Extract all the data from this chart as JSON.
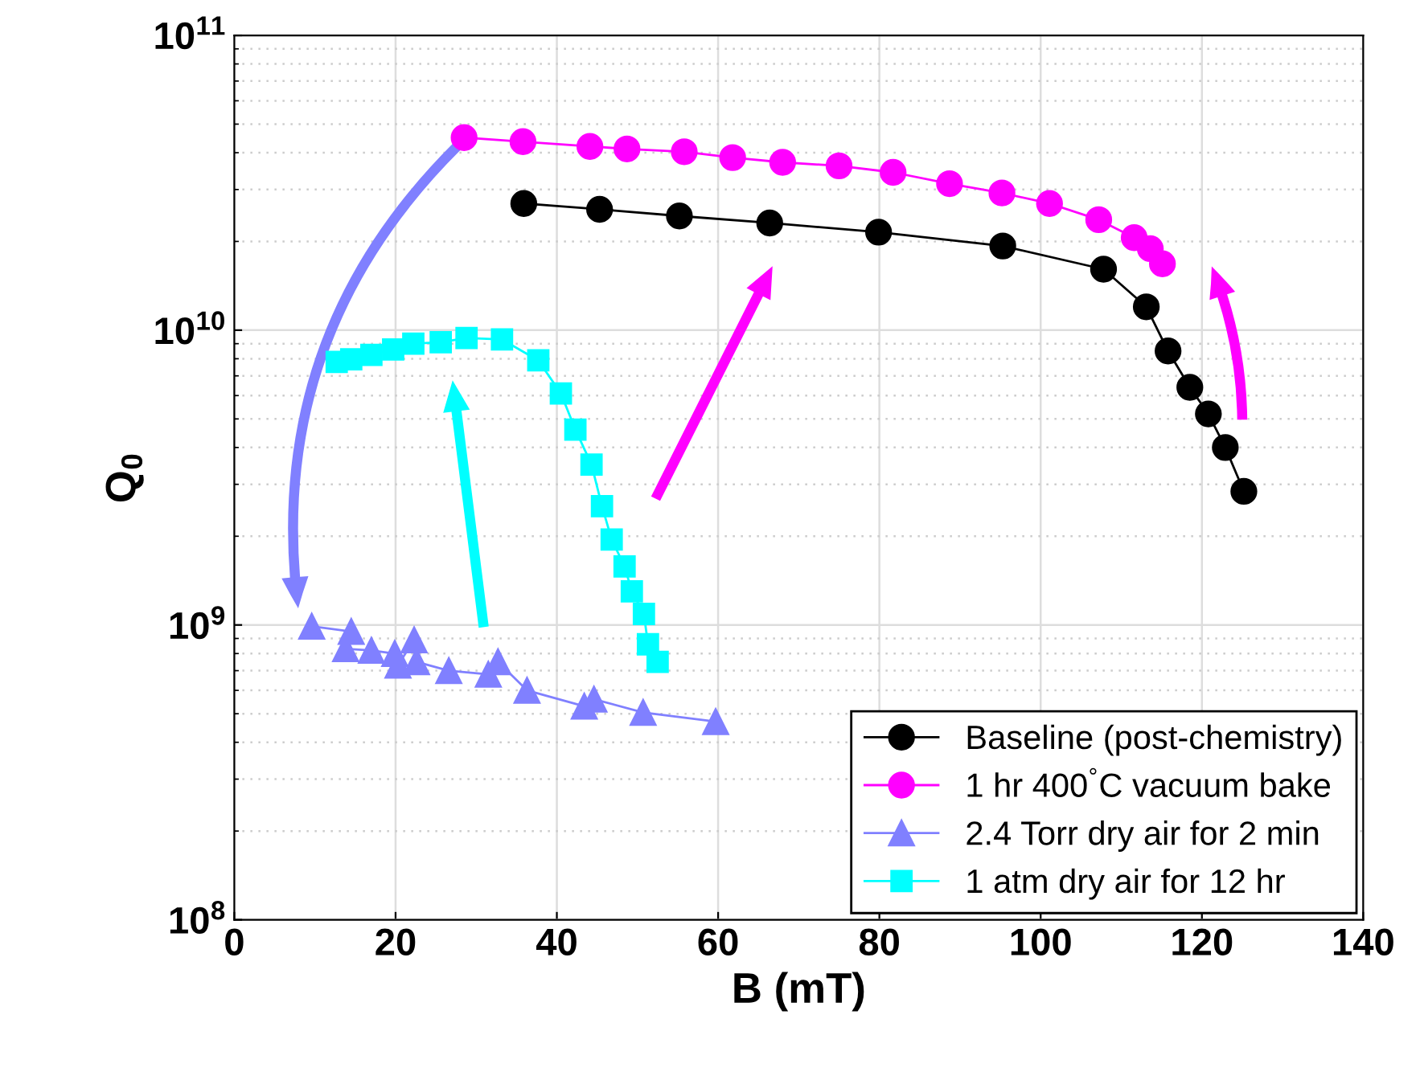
{
  "chart_data": {
    "type": "line",
    "xlabel": "B (mT)",
    "ylabel": "Q$_{0}$",
    "log": "y",
    "grid": true,
    "legend": "bottom right",
    "xlim": [
      0,
      140
    ],
    "xticks": [
      0,
      20,
      40,
      60,
      80,
      100,
      120,
      140
    ],
    "ylim": [
      100000000.0,
      100000000000.0
    ],
    "yticks": [
      {
        "value": 100000000.0,
        "label": "10$^{8}$"
      },
      {
        "value": 1000000000.0,
        "label": "10$^{9}$"
      },
      {
        "value": 10000000000.0,
        "label": "10$^{10}$"
      },
      {
        "value": 100000000000.0,
        "label": "10$^{11}$"
      }
    ],
    "series": [
      {
        "name": "Baseline (post-chemistry)",
        "color": "#000000",
        "marker": "circle",
        "x": [
          35.9,
          45.3,
          55.2,
          66.4,
          79.9,
          95.3,
          107.8,
          113.1,
          115.8,
          118.5,
          120.8,
          122.9,
          125.2
        ],
        "values": [
          26900000000.0,
          25700000000.0,
          24400000000.0,
          23100000000.0,
          21500000000.0,
          19300000000.0,
          16100000000.0,
          12000000000.0,
          8500000000.0,
          6400000000.0,
          5200000000.0,
          4000000000.0,
          2840000000.0
        ]
      },
      {
        "name": "1 hr 400$^{°}$C vacuum bake",
        "color": "#ff00ff",
        "marker": "circle",
        "x": [
          28.5,
          35.8,
          44.1,
          48.7,
          55.8,
          61.8,
          68.0,
          75.0,
          81.7,
          88.7,
          95.2,
          101.1,
          107.2,
          111.6,
          113.6,
          115.1
        ],
        "values": [
          45000000000.0,
          43600000000.0,
          42000000000.0,
          41200000000.0,
          40300000000.0,
          38500000000.0,
          37100000000.0,
          36100000000.0,
          34300000000.0,
          31400000000.0,
          29200000000.0,
          26900000000.0,
          23700000000.0,
          20600000000.0,
          18900000000.0,
          16800000000.0
        ]
      },
      {
        "name": "2.4 Torr dry air for 2 min",
        "color": "#8080ff",
        "marker": "triangle",
        "x": [
          9.6,
          14.5,
          13.8,
          17.0,
          19.9,
          20.3,
          22.3,
          22.6,
          26.6,
          31.5,
          32.7,
          36.3,
          43.4,
          44.6,
          50.7,
          59.7
        ],
        "values": [
          990000000.0,
          950000000.0,
          830000000.0,
          820000000.0,
          800000000.0,
          730000000.0,
          890000000.0,
          750000000.0,
          700000000.0,
          680000000.0,
          750000000.0,
          600000000.0,
          530000000.0,
          560000000.0,
          505000000.0,
          470000000.0
        ]
      },
      {
        "name": "1 atm dry air for 12 hr",
        "color": "#00ffff",
        "marker": "square",
        "x": [
          12.7,
          14.5,
          17.0,
          19.7,
          22.2,
          25.6,
          28.8,
          33.2,
          37.7,
          40.5,
          42.3,
          44.3,
          45.6,
          46.8,
          48.4,
          49.3,
          50.8,
          51.3,
          52.5
        ],
        "values": [
          7800000000.0,
          7970000000.0,
          8250000000.0,
          8600000000.0,
          9000000000.0,
          9100000000.0,
          9400000000.0,
          9300000000.0,
          7900000000.0,
          6100000000.0,
          4600000000.0,
          3500000000.0,
          2530000000.0,
          1950000000.0,
          1580000000.0,
          1300000000.0,
          1090000000.0,
          860000000.0,
          750000000.0
        ]
      }
    ]
  }
}
